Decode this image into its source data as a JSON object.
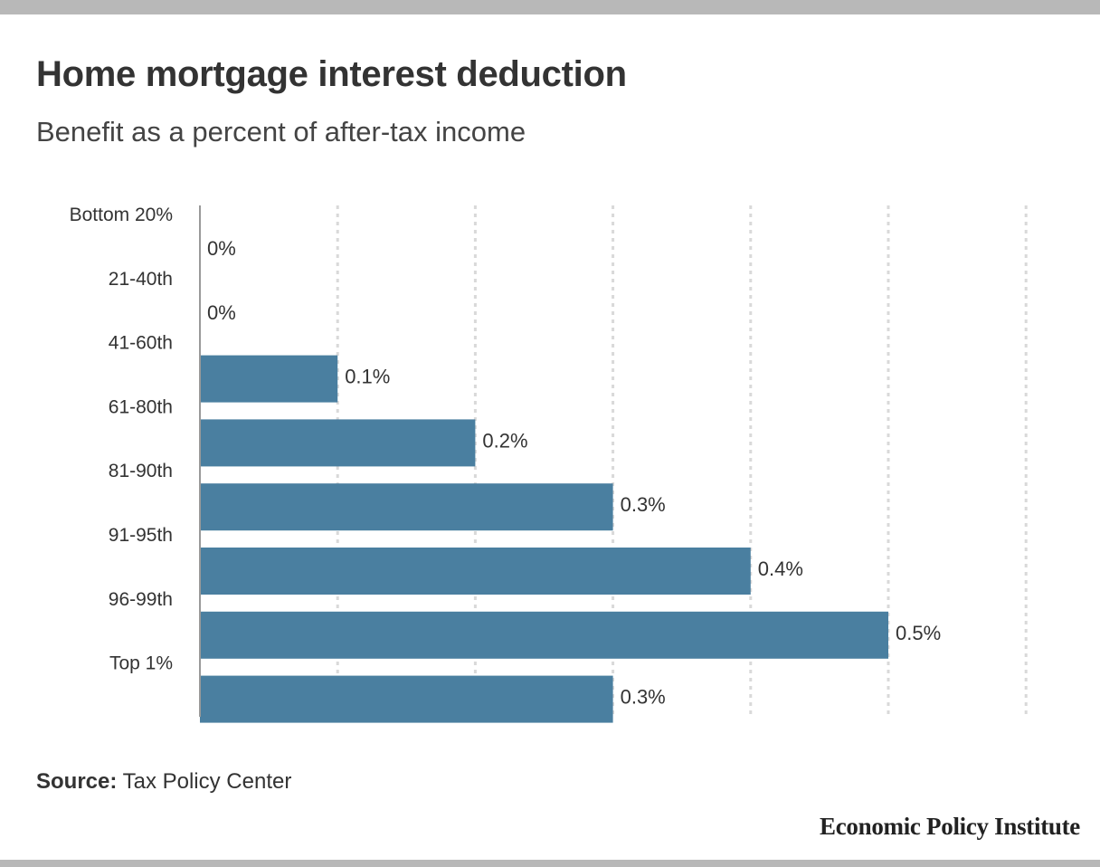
{
  "title": "Home mortgage interest deduction",
  "subtitle": "Benefit as a percent of after-tax income",
  "source": {
    "label": "Source:",
    "text": "Tax Policy Center"
  },
  "brand": "Economic Policy Institute",
  "colors": {
    "bar": "#4a7fa0",
    "text": "#333333",
    "grid": "#d9d9d9",
    "axis": "#999999",
    "frame": "#b8b8b8"
  },
  "chart_data": {
    "type": "bar",
    "orientation": "horizontal",
    "categories": [
      "Bottom 20%",
      "21-40th",
      "41-60th",
      "61-80th",
      "81-90th",
      "91-95th",
      "96-99th",
      "Top 1%"
    ],
    "values": [
      0,
      0,
      0.1,
      0.2,
      0.3,
      0.4,
      0.5,
      0.3
    ],
    "data_labels": [
      "0%",
      "0%",
      "0.1%",
      "0.2%",
      "0.3%",
      "0.4%",
      "0.5%",
      "0.3%"
    ],
    "xlim": [
      0,
      0.6
    ],
    "gridlines": [
      0.1,
      0.2,
      0.3,
      0.4,
      0.5,
      0.6
    ],
    "grid": true,
    "title": "Home mortgage interest deduction",
    "subtitle": "Benefit as a percent of after-tax income",
    "xlabel": "",
    "ylabel": ""
  }
}
